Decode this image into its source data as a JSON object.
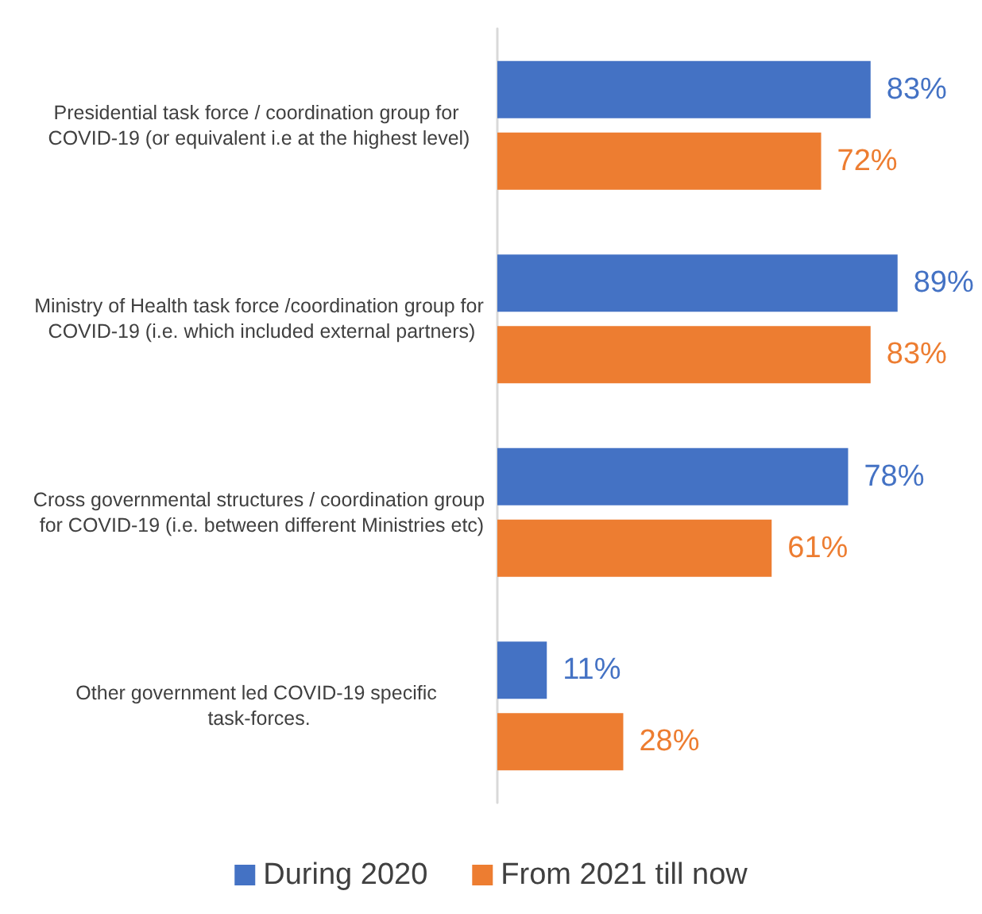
{
  "chart_data": {
    "type": "bar",
    "orientation": "horizontal",
    "categories": [
      "Presidential task force / coordination group for COVID-19 (or equivalent i.e at the highest level)",
      "Ministry of Health task force /coordination group for COVID-19 (i.e. which included external partners)",
      "Cross governmental structures / coordination group for COVID-19 (i.e. between different Ministries etc)",
      "Other government led COVID-19 specific task-forces."
    ],
    "series": [
      {
        "name": "During 2020",
        "color": "#4472c4",
        "values": [
          83,
          89,
          78,
          11
        ],
        "value_labels": [
          "83%",
          "89%",
          "78%",
          "11%"
        ]
      },
      {
        "name": "From 2021 till now",
        "color": "#ed7d31",
        "values": [
          72,
          83,
          61,
          28
        ],
        "value_labels": [
          "72%",
          "83%",
          "61%",
          "28%"
        ]
      }
    ],
    "legend": "bottom",
    "grid": false
  }
}
